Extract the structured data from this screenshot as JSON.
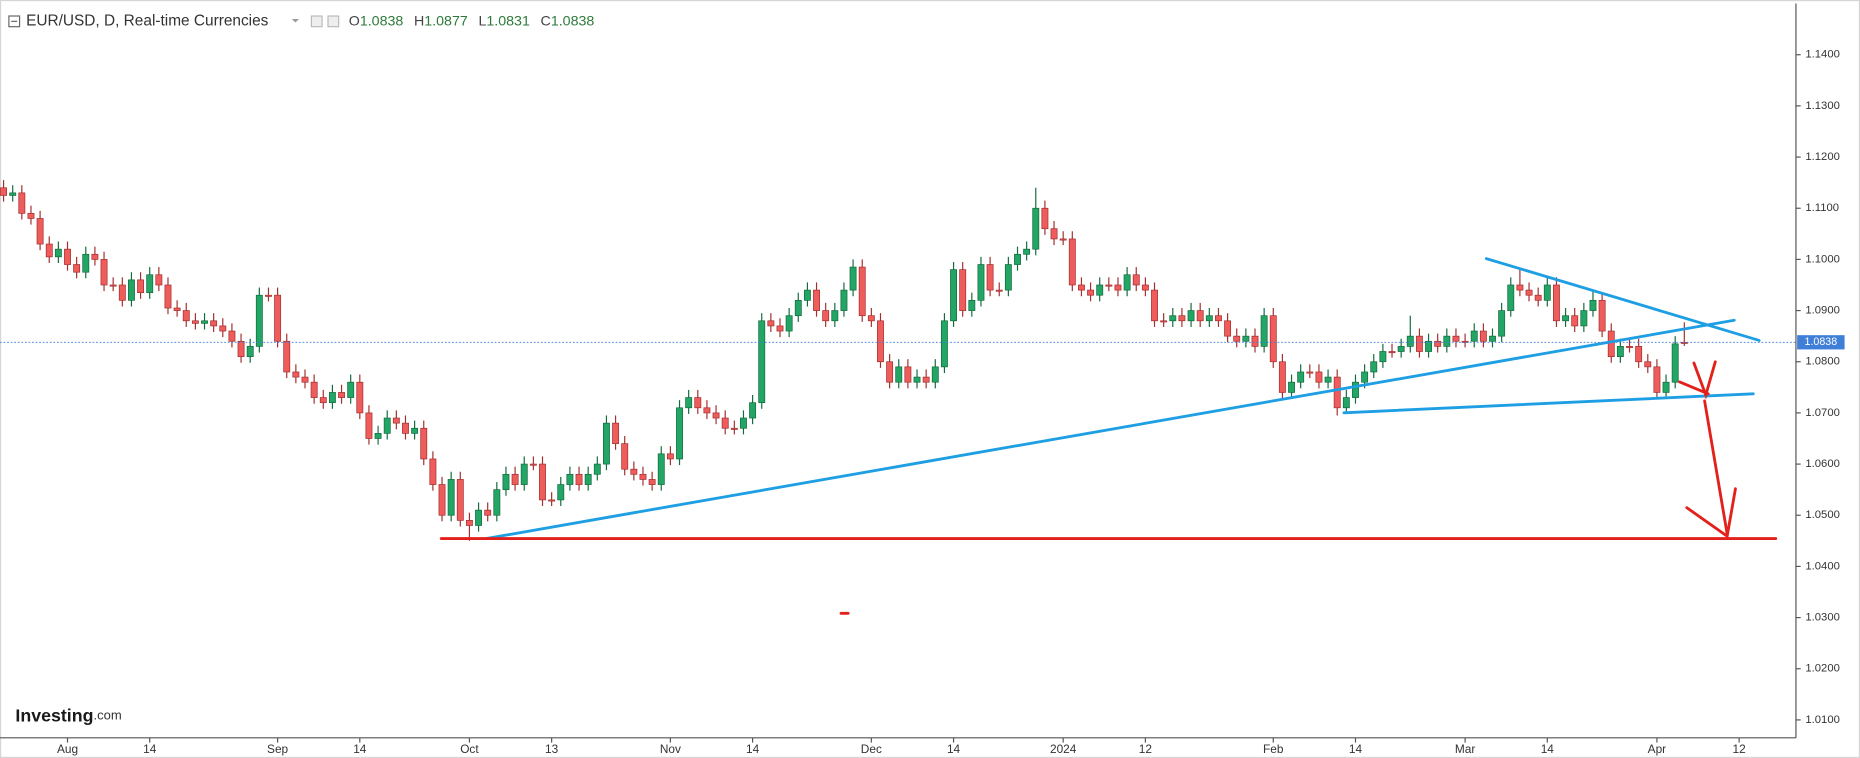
{
  "chart_data": {
    "type": "candlestick",
    "title": "EUR/USD, D, Real-time Currencies",
    "ohlc_prefixes": [
      "O",
      "H",
      "L",
      "C"
    ],
    "up_color": "#22a565",
    "down_color": "#ef5c5c",
    "last_price_color": "#3f7fd8",
    "xlim": [
      -0.39,
      195.7
    ],
    "ylim": [
      1.0065,
      1.15
    ],
    "xticks": [
      {
        "value": 7,
        "label": "Aug"
      },
      {
        "value": 16,
        "label": "14"
      },
      {
        "value": 30,
        "label": "Sep"
      },
      {
        "value": 39,
        "label": "14"
      },
      {
        "value": 51,
        "label": "Oct"
      },
      {
        "value": 60,
        "label": "13"
      },
      {
        "value": 73,
        "label": "Nov"
      },
      {
        "value": 82,
        "label": "14"
      },
      {
        "value": 95,
        "label": "Dec"
      },
      {
        "value": 104,
        "label": "14"
      },
      {
        "value": 116,
        "label": "2024"
      },
      {
        "value": 125,
        "label": "12"
      },
      {
        "value": 139,
        "label": "Feb"
      },
      {
        "value": 148,
        "label": "14"
      },
      {
        "value": 160,
        "label": "Mar"
      },
      {
        "value": 169,
        "label": "14"
      },
      {
        "value": 181,
        "label": "Apr"
      },
      {
        "value": 190,
        "label": "12"
      }
    ],
    "yticks": [
      {
        "value": 1.01,
        "label": "1.0100"
      },
      {
        "value": 1.02,
        "label": "1.0200"
      },
      {
        "value": 1.03,
        "label": "1.0300"
      },
      {
        "value": 1.04,
        "label": "1.0400"
      },
      {
        "value": 1.05,
        "label": "1.0500"
      },
      {
        "value": 1.06,
        "label": "1.0600"
      },
      {
        "value": 1.07,
        "label": "1.0700"
      },
      {
        "value": 1.08,
        "label": "1.0800"
      },
      {
        "value": 1.09,
        "label": "1.0900"
      },
      {
        "value": 1.1,
        "label": "1.1000"
      },
      {
        "value": 1.11,
        "label": "1.1100"
      },
      {
        "value": 1.12,
        "label": "1.1200"
      },
      {
        "value": 1.13,
        "label": "1.1300"
      },
      {
        "value": 1.14,
        "label": "1.1400"
      }
    ],
    "open": [
      1.114,
      1.1125,
      1.113,
      1.109,
      1.108,
      1.103,
      1.1005,
      1.102,
      1.099,
      1.0975,
      1.101,
      1.1,
      1.095,
      1.095,
      1.092,
      1.096,
      1.0935,
      1.097,
      1.095,
      1.0905,
      1.09,
      1.088,
      1.0875,
      1.088,
      1.087,
      1.086,
      1.084,
      1.081,
      1.083,
      1.093,
      1.093,
      1.084,
      1.078,
      1.077,
      1.076,
      1.073,
      1.072,
      1.074,
      1.073,
      1.076,
      1.07,
      1.065,
      1.066,
      1.069,
      1.068,
      1.066,
      1.067,
      1.061,
      1.056,
      1.05,
      1.057,
      1.049,
      1.048,
      1.051,
      1.05,
      1.055,
      1.058,
      1.056,
      1.06,
      1.06,
      1.053,
      1.053,
      1.056,
      1.058,
      1.056,
      1.058,
      1.06,
      1.068,
      1.064,
      1.059,
      1.058,
      1.057,
      1.056,
      1.062,
      1.061,
      1.071,
      1.073,
      1.071,
      1.07,
      1.069,
      1.067,
      1.067,
      1.069,
      1.072,
      1.088,
      1.087,
      1.086,
      1.089,
      1.092,
      1.094,
      1.09,
      1.088,
      1.09,
      1.094,
      1.0985,
      1.089,
      1.088,
      1.08,
      1.076,
      1.079,
      1.076,
      1.077,
      1.076,
      1.079,
      1.088,
      1.098,
      1.09,
      1.092,
      1.099,
      1.094,
      1.094,
      1.099,
      1.101,
      1.102,
      1.11,
      1.106,
      1.104,
      1.104,
      1.095,
      1.094,
      1.093,
      1.095,
      1.095,
      1.094,
      1.097,
      1.095,
      1.094,
      1.088,
      1.088,
      1.089,
      1.088,
      1.09,
      1.088,
      1.089,
      1.088,
      1.085,
      1.084,
      1.085,
      1.083,
      1.089,
      1.08,
      1.074,
      1.076,
      1.078,
      1.078,
      1.076,
      1.077,
      1.071,
      1.073,
      1.076,
      1.078,
      1.08,
      1.082,
      1.082,
      1.083,
      1.085,
      1.082,
      1.084,
      1.083,
      1.085,
      1.084,
      1.084,
      1.086,
      1.084,
      1.085,
      1.09,
      1.095,
      1.094,
      1.093,
      1.092,
      1.095,
      1.088,
      1.089,
      1.087,
      1.09,
      1.092,
      1.086,
      1.081,
      1.083,
      1.083,
      1.08,
      1.079,
      1.074,
      1.076,
      1.0838
    ],
    "high": [
      1.1155,
      1.1145,
      1.1145,
      1.1105,
      1.1095,
      1.1045,
      1.1035,
      1.1035,
      1.1005,
      1.1025,
      1.1025,
      1.1015,
      1.0965,
      1.0965,
      1.0975,
      1.0975,
      1.0985,
      1.0985,
      1.0965,
      1.092,
      1.0915,
      1.0895,
      1.0895,
      1.0895,
      1.0885,
      1.0875,
      1.0855,
      1.0845,
      1.0945,
      1.0945,
      1.0945,
      1.0855,
      1.0795,
      1.0785,
      1.0775,
      1.0745,
      1.0755,
      1.0755,
      1.0775,
      1.0775,
      1.0715,
      1.0675,
      1.0705,
      1.0705,
      1.0695,
      1.0685,
      1.0685,
      1.0625,
      1.0575,
      1.0585,
      1.0585,
      1.0505,
      1.0525,
      1.0525,
      1.0565,
      1.0595,
      1.0595,
      1.0615,
      1.0615,
      1.0615,
      1.0545,
      1.0575,
      1.0595,
      1.0595,
      1.0595,
      1.0615,
      1.0695,
      1.0695,
      1.0655,
      1.0605,
      1.0595,
      1.0585,
      1.0635,
      1.0635,
      1.0725,
      1.0745,
      1.0745,
      1.0725,
      1.0715,
      1.0705,
      1.0685,
      1.0705,
      1.0735,
      1.0895,
      1.0895,
      1.0885,
      1.0905,
      1.0935,
      1.0955,
      1.0955,
      1.0915,
      1.0915,
      1.0955,
      1.1,
      1.1,
      1.0905,
      1.0895,
      1.0815,
      1.0805,
      1.0805,
      1.0785,
      1.0785,
      1.0805,
      1.0895,
      1.0995,
      1.0995,
      1.0935,
      1.1005,
      1.1005,
      1.0955,
      1.1005,
      1.1025,
      1.1035,
      1.114,
      1.1115,
      1.1075,
      1.1055,
      1.1055,
      1.0965,
      1.0955,
      1.0965,
      1.0965,
      1.0965,
      1.0985,
      1.0985,
      1.0965,
      1.0955,
      1.0895,
      1.0905,
      1.0905,
      1.0915,
      1.0915,
      1.0905,
      1.0905,
      1.0895,
      1.0865,
      1.0865,
      1.0865,
      1.0905,
      1.0905,
      1.0815,
      1.0775,
      1.0795,
      1.0795,
      1.0795,
      1.0785,
      1.0785,
      1.0745,
      1.0775,
      1.0795,
      1.0815,
      1.0835,
      1.0835,
      1.0845,
      1.089,
      1.0865,
      1.0855,
      1.0855,
      1.0865,
      1.0865,
      1.0855,
      1.0875,
      1.0875,
      1.0865,
      1.0915,
      1.0965,
      1.098,
      1.0955,
      1.0945,
      1.0965,
      1.0965,
      1.0905,
      1.0905,
      1.0915,
      1.094,
      1.0935,
      1.0875,
      1.0845,
      1.0845,
      1.0845,
      1.0815,
      1.0805,
      1.0775,
      1.085,
      1.0877
    ],
    "low": [
      1.1113,
      1.1113,
      1.1078,
      1.1068,
      1.1018,
      1.0993,
      1.0993,
      1.0978,
      1.0963,
      1.0963,
      1.0988,
      1.0938,
      1.0938,
      1.0908,
      1.0908,
      1.0923,
      1.0923,
      1.0938,
      1.0893,
      1.0888,
      1.0868,
      1.0863,
      1.0863,
      1.0858,
      1.0848,
      1.0828,
      1.0798,
      1.0798,
      1.0818,
      1.0918,
      1.0828,
      1.0768,
      1.0758,
      1.0748,
      1.0718,
      1.0708,
      1.0708,
      1.0718,
      1.0718,
      1.0688,
      1.0638,
      1.0638,
      1.0648,
      1.0668,
      1.0648,
      1.0648,
      1.0598,
      1.0548,
      1.0488,
      1.0488,
      1.0478,
      1.045,
      1.0468,
      1.0488,
      1.0488,
      1.0538,
      1.0548,
      1.0548,
      1.0588,
      1.0518,
      1.0518,
      1.0518,
      1.0548,
      1.0548,
      1.0548,
      1.0568,
      1.0588,
      1.0628,
      1.0578,
      1.0568,
      1.0558,
      1.0548,
      1.0548,
      1.0598,
      1.0598,
      1.0698,
      1.0698,
      1.0688,
      1.0678,
      1.0658,
      1.0658,
      1.0658,
      1.0678,
      1.0708,
      1.0858,
      1.0848,
      1.0848,
      1.0878,
      1.0908,
      1.0888,
      1.0868,
      1.0868,
      1.0888,
      1.0928,
      1.0878,
      1.0868,
      1.0788,
      1.0748,
      1.0748,
      1.0748,
      1.0748,
      1.0748,
      1.0748,
      1.0778,
      1.0868,
      1.0888,
      1.0888,
      1.0908,
      1.0928,
      1.0928,
      1.0928,
      1.0978,
      1.0998,
      1.1008,
      1.1048,
      1.1028,
      1.1028,
      1.0938,
      1.0928,
      1.0918,
      1.0918,
      1.0938,
      1.0928,
      1.0928,
      1.0938,
      1.0928,
      1.0868,
      1.0868,
      1.0868,
      1.0868,
      1.0868,
      1.0868,
      1.0868,
      1.0868,
      1.0838,
      1.0828,
      1.0828,
      1.0818,
      1.0818,
      1.0788,
      1.0728,
      1.0728,
      1.0748,
      1.0768,
      1.0748,
      1.0748,
      1.0695,
      1.0698,
      1.0718,
      1.0748,
      1.0768,
      1.0788,
      1.0808,
      1.0808,
      1.0818,
      1.0808,
      1.0808,
      1.0818,
      1.0818,
      1.0828,
      1.0828,
      1.0828,
      1.0828,
      1.0828,
      1.0838,
      1.0888,
      1.0928,
      1.0918,
      1.0908,
      1.0908,
      1.0868,
      1.0868,
      1.0858,
      1.0858,
      1.0888,
      1.0848,
      1.0798,
      1.0798,
      1.0818,
      1.0788,
      1.0778,
      1.0728,
      1.0728,
      1.0748,
      1.0831
    ],
    "close": [
      1.1125,
      1.113,
      1.109,
      1.108,
      1.103,
      1.1005,
      1.102,
      1.099,
      1.0975,
      1.101,
      1.1,
      1.095,
      1.095,
      1.092,
      1.096,
      1.0935,
      1.097,
      1.095,
      1.0905,
      1.09,
      1.088,
      1.0875,
      1.088,
      1.087,
      1.086,
      1.084,
      1.081,
      1.083,
      1.093,
      1.093,
      1.084,
      1.078,
      1.077,
      1.076,
      1.073,
      1.072,
      1.074,
      1.073,
      1.076,
      1.07,
      1.065,
      1.066,
      1.069,
      1.068,
      1.066,
      1.067,
      1.061,
      1.056,
      1.05,
      1.057,
      1.049,
      1.048,
      1.051,
      1.05,
      1.055,
      1.058,
      1.056,
      1.06,
      1.06,
      1.053,
      1.053,
      1.056,
      1.058,
      1.056,
      1.058,
      1.06,
      1.068,
      1.064,
      1.059,
      1.058,
      1.057,
      1.056,
      1.062,
      1.061,
      1.071,
      1.073,
      1.071,
      1.07,
      1.069,
      1.067,
      1.067,
      1.069,
      1.072,
      1.088,
      1.087,
      1.086,
      1.089,
      1.092,
      1.094,
      1.09,
      1.088,
      1.09,
      1.094,
      1.0985,
      1.089,
      1.088,
      1.08,
      1.076,
      1.079,
      1.076,
      1.077,
      1.076,
      1.079,
      1.088,
      1.098,
      1.09,
      1.092,
      1.099,
      1.094,
      1.094,
      1.099,
      1.101,
      1.102,
      1.11,
      1.106,
      1.104,
      1.104,
      1.095,
      1.094,
      1.093,
      1.095,
      1.095,
      1.094,
      1.097,
      1.095,
      1.094,
      1.088,
      1.088,
      1.089,
      1.088,
      1.09,
      1.088,
      1.089,
      1.088,
      1.085,
      1.084,
      1.085,
      1.083,
      1.089,
      1.08,
      1.074,
      1.076,
      1.078,
      1.078,
      1.076,
      1.077,
      1.071,
      1.073,
      1.076,
      1.078,
      1.08,
      1.082,
      1.082,
      1.083,
      1.085,
      1.082,
      1.084,
      1.083,
      1.085,
      1.084,
      1.084,
      1.086,
      1.084,
      1.085,
      1.09,
      1.095,
      1.094,
      1.093,
      1.092,
      1.095,
      1.088,
      1.089,
      1.087,
      1.09,
      1.092,
      1.086,
      1.081,
      1.083,
      1.083,
      1.08,
      1.079,
      1.074,
      1.076,
      1.0835,
      1.0838
    ]
  },
  "logo": {
    "brand": "Investing",
    "suffix": ".com"
  }
}
